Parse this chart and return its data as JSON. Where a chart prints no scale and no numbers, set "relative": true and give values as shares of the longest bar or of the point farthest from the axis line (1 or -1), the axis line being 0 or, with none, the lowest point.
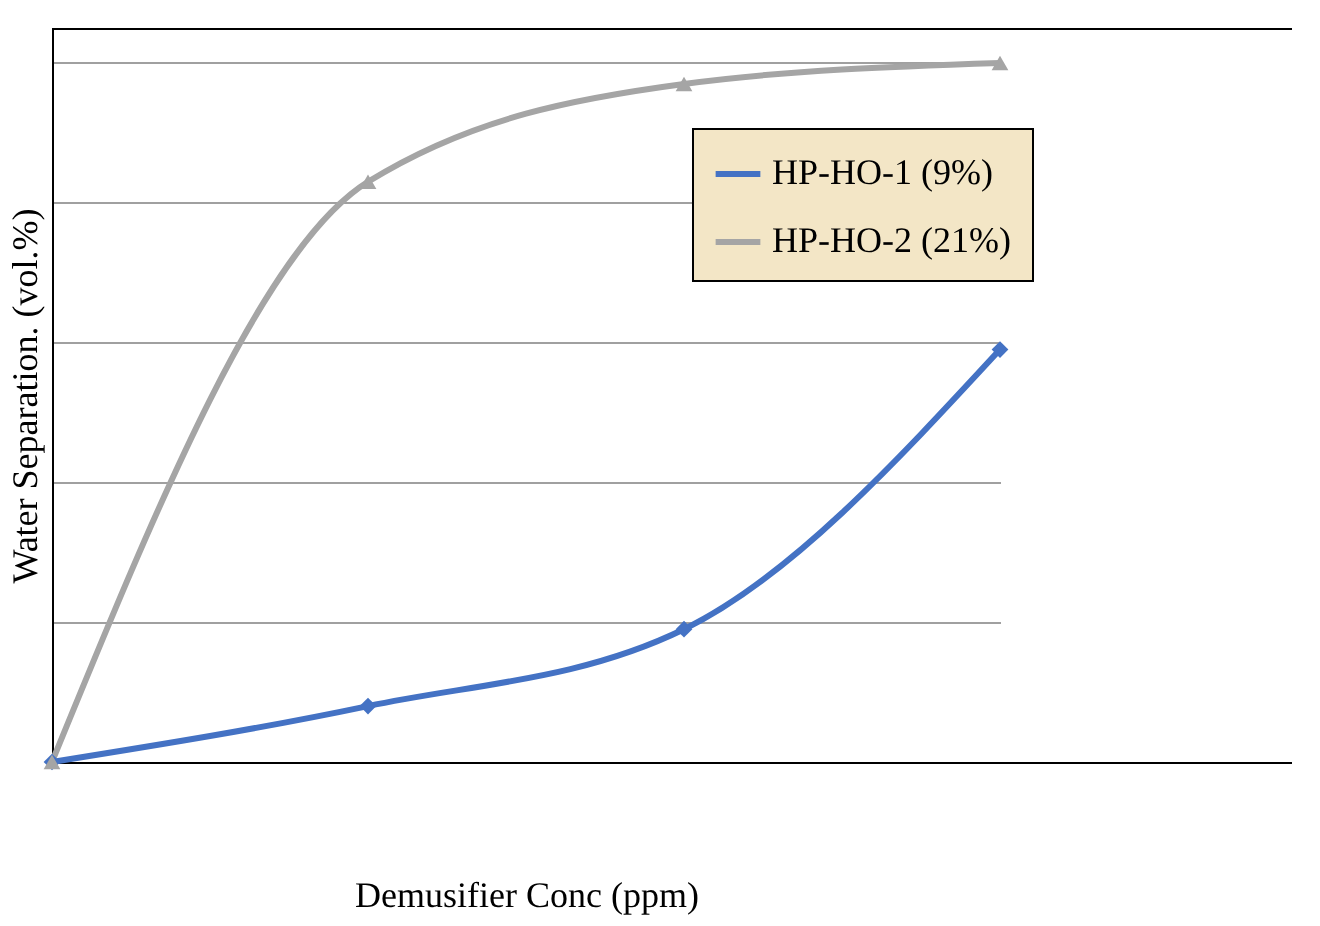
{
  "chart_data": {
    "type": "line",
    "relative": true,
    "xlabel": "Demusifier Conc (ppm)",
    "ylabel": "Water Separation. (vol.%)",
    "categories": [
      null,
      null,
      null,
      null
    ],
    "series": [
      {
        "name": "HP-HO-1  (9%)",
        "color": "#4472c4",
        "marker": "diamond",
        "values": [
          0,
          0.08,
          0.19,
          0.59
        ]
      },
      {
        "name": "HP-HO-2 (21%)",
        "color": "#a5a5a5",
        "marker": "triangle",
        "values": [
          0,
          0.83,
          0.97,
          1
        ]
      }
    ],
    "grid": "y",
    "legend": "top right"
  }
}
